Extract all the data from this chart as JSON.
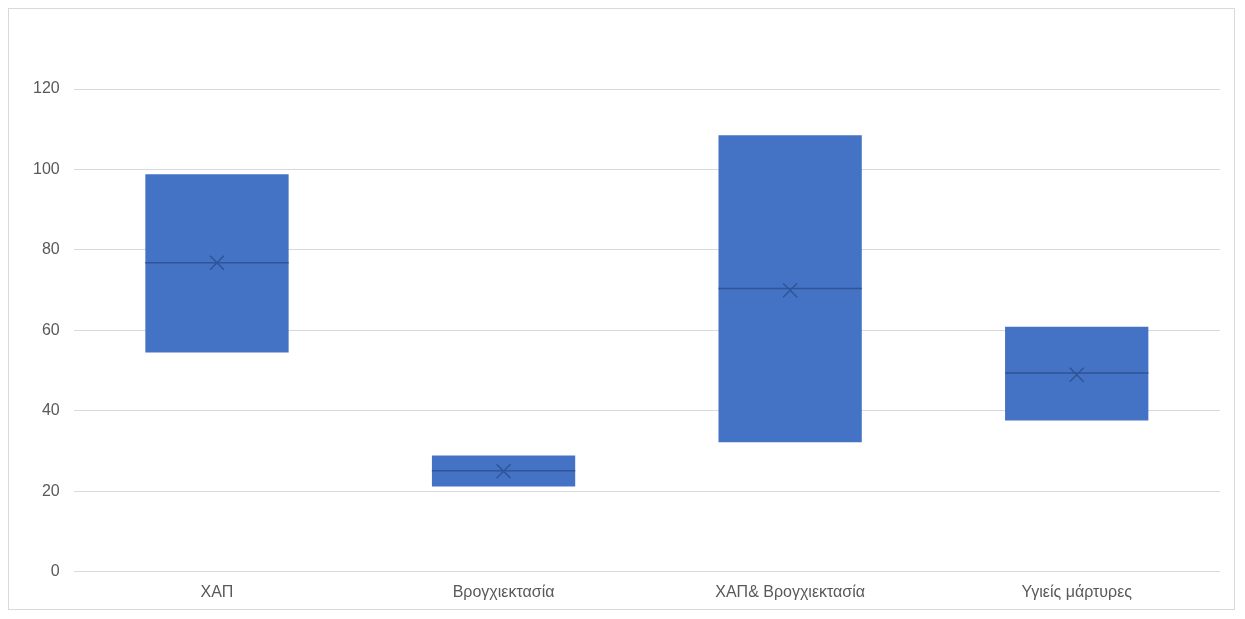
{
  "chart_data": {
    "type": "box",
    "categories": [
      "ΧΑΠ",
      "Βρογχιεκτασία",
      "ΧΑΠ& Βρογχιεκτασία",
      "Υγιείς μάρτυρες"
    ],
    "boxes": [
      {
        "low": 54.5,
        "q1": 54.5,
        "median": 76.8,
        "q3": 98.8,
        "high": 98.8,
        "mean": 76.8
      },
      {
        "low": 21.2,
        "q1": 21.2,
        "median": 25.1,
        "q3": 28.9,
        "high": 28.9,
        "mean": 25
      },
      {
        "low": 32.2,
        "q1": 32.2,
        "median": 70.4,
        "q3": 108.5,
        "high": 108.5,
        "mean": 70
      },
      {
        "low": 37.6,
        "q1": 37.6,
        "median": 49.4,
        "q3": 60.9,
        "high": 60.9,
        "mean": 49
      }
    ],
    "color": "#4472c4",
    "ylim": [
      0,
      120
    ],
    "yticks": [
      0,
      20,
      40,
      60,
      80,
      100,
      120
    ],
    "grid": "y",
    "marker": "cross"
  }
}
